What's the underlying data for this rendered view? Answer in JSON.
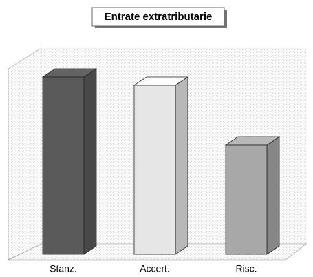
{
  "chart_data": {
    "type": "bar3d",
    "title": "Entrate extratributarie",
    "categories": [
      "Stanz.",
      "Accert.",
      "Risc."
    ],
    "values": [
      86,
      82,
      53
    ],
    "colors": [
      "#5a5a5a",
      "#e6e6e6",
      "#a8a8a8"
    ],
    "ylim": [
      0,
      100
    ]
  }
}
